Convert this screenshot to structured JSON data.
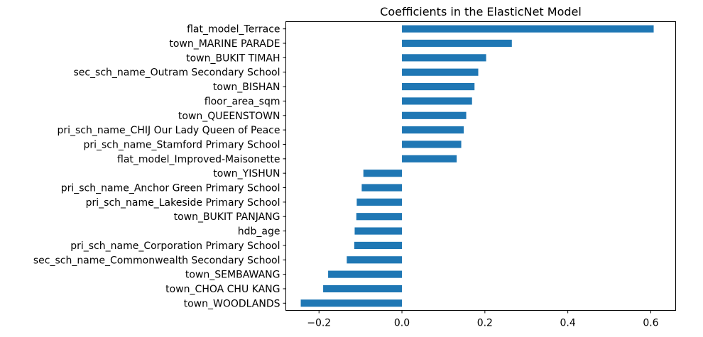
{
  "chart_data": {
    "type": "bar",
    "orientation": "horizontal",
    "title": "Coefficients in the ElasticNet Model",
    "xlabel": "",
    "ylabel": "",
    "xlim": [
      -0.28,
      0.66
    ],
    "x_ticks": [
      -0.2,
      0.0,
      0.2,
      0.4,
      0.6
    ],
    "x_tick_labels": [
      "−0.2",
      "0.0",
      "0.2",
      "0.4",
      "0.6"
    ],
    "grid": false,
    "legend": "none",
    "bar_color": "#1f77b4",
    "categories": [
      "flat_model_Terrace",
      "town_MARINE PARADE",
      "town_BUKIT TIMAH",
      "sec_sch_name_Outram Secondary School",
      "town_BISHAN",
      "floor_area_sqm",
      "town_QUEENSTOWN",
      "pri_sch_name_CHIJ Our Lady Queen of Peace",
      "pri_sch_name_Stamford Primary School",
      "flat_model_Improved-Maisonette",
      "town_YISHUN",
      "pri_sch_name_Anchor Green Primary School",
      "pri_sch_name_Lakeside Primary School",
      "town_BUKIT PANJANG",
      "hdb_age",
      "pri_sch_name_Corporation Primary School",
      "sec_sch_name_Commonwealth Secondary School",
      "town_SEMBAWANG",
      "town_CHOA CHU KANG",
      "town_WOODLANDS"
    ],
    "values": [
      0.607,
      0.265,
      0.203,
      0.184,
      0.175,
      0.169,
      0.155,
      0.149,
      0.143,
      0.132,
      -0.093,
      -0.097,
      -0.109,
      -0.11,
      -0.114,
      -0.115,
      -0.133,
      -0.178,
      -0.19,
      -0.244
    ]
  }
}
